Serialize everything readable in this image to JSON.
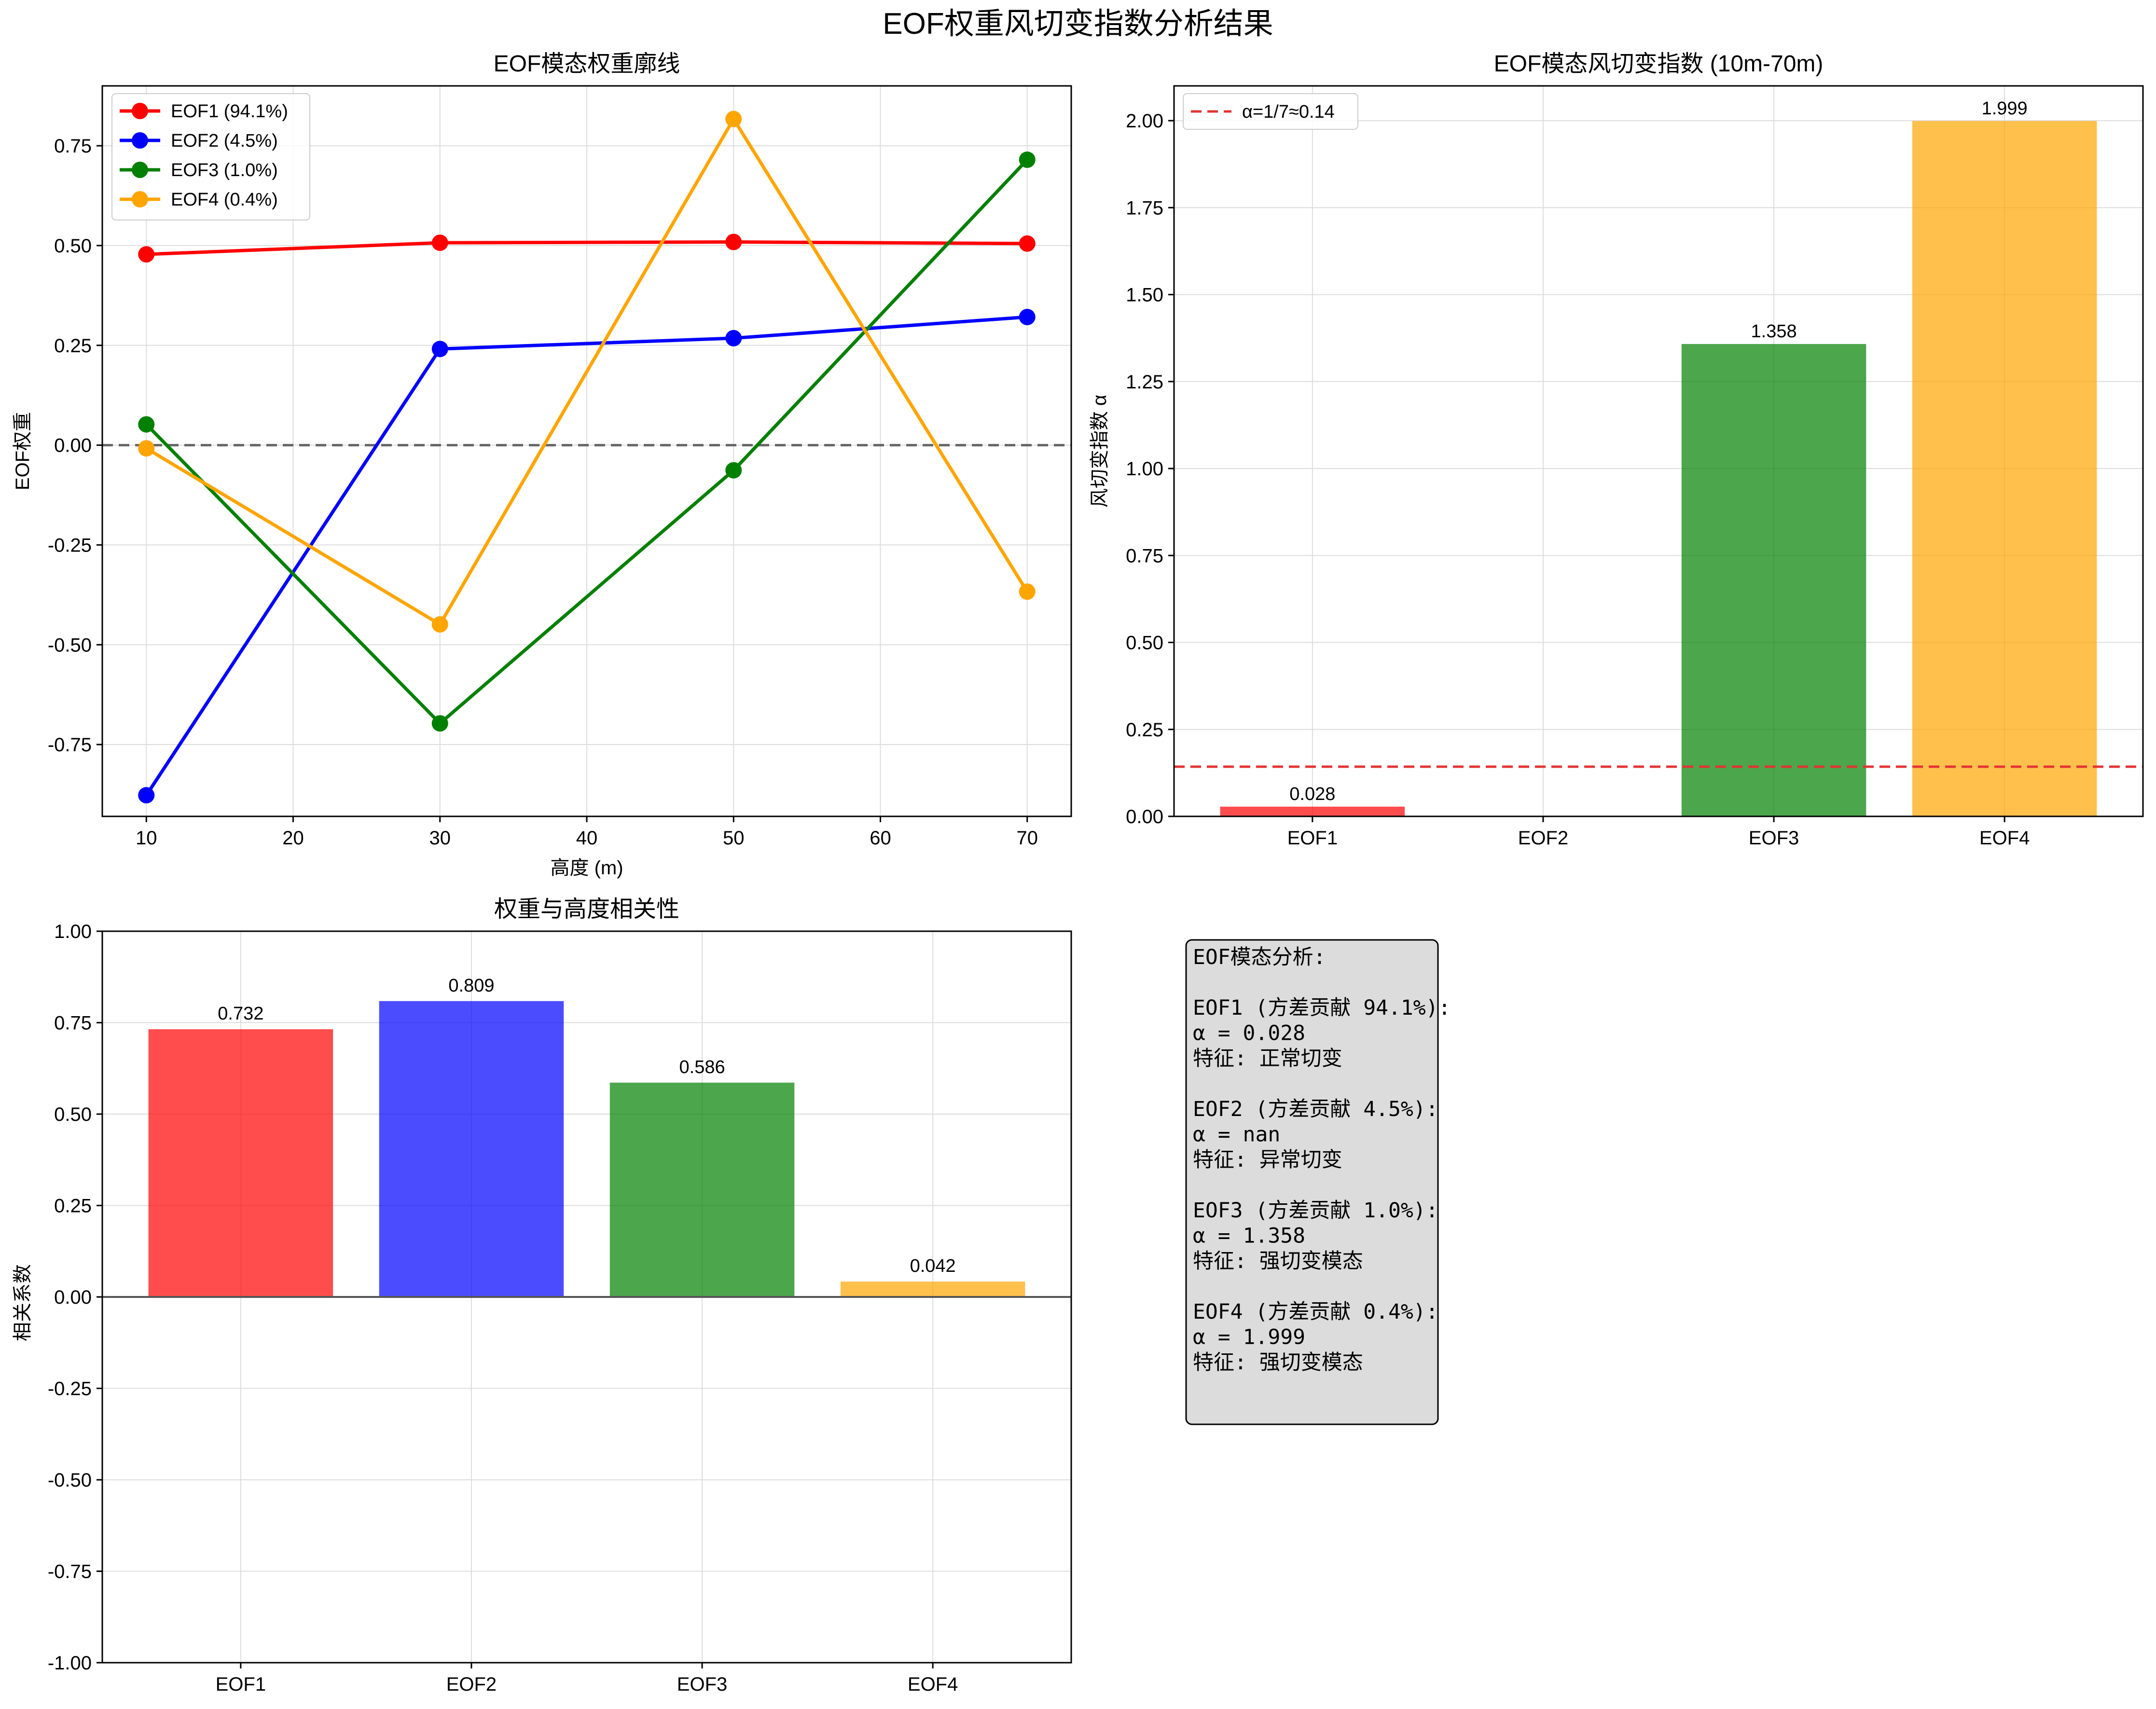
{
  "suptitle": "EOF权重风切变指数分析结果",
  "colors": {
    "EOF1": "#ff0000",
    "EOF2": "#0000ff",
    "EOF3": "#008000",
    "EOF4": "#ffa500",
    "ref_line": "#e33333",
    "zero_line": "#666666",
    "textbox_bg": "#dcdcdc"
  },
  "chart_data": [
    {
      "type": "line",
      "title": "EOF模态权重廓线",
      "xlabel": "高度 (m)",
      "ylabel": "EOF权重",
      "x": [
        10,
        30,
        50,
        70
      ],
      "xlim": [
        7,
        73
      ],
      "ylim": [
        -0.93,
        0.9
      ],
      "xticks": [
        10,
        20,
        30,
        40,
        50,
        60,
        70
      ],
      "yticks": [
        -0.75,
        -0.5,
        -0.25,
        0.0,
        0.25,
        0.5,
        0.75
      ],
      "ytick_labels": [
        "-0.75",
        "-0.50",
        "-0.25",
        "0.00",
        "0.25",
        "0.50",
        "0.75"
      ],
      "grid": true,
      "legend": "top-left",
      "zero_line": true,
      "series": [
        {
          "name": "EOF1 (94.1%)",
          "key": "EOF1",
          "values": [
            0.478,
            0.507,
            0.509,
            0.505
          ]
        },
        {
          "name": "EOF2 (4.5%)",
          "key": "EOF2",
          "values": [
            -0.877,
            0.241,
            0.268,
            0.321
          ]
        },
        {
          "name": "EOF3 (1.0%)",
          "key": "EOF3",
          "values": [
            0.052,
            -0.697,
            -0.063,
            0.715
          ]
        },
        {
          "name": "EOF4 (0.4%)",
          "key": "EOF4",
          "values": [
            -0.008,
            -0.449,
            0.817,
            -0.367
          ]
        }
      ]
    },
    {
      "type": "bar",
      "title": "EOF模态风切变指数 (10m-70m)",
      "xlabel": "",
      "ylabel": "风切变指数 α",
      "categories": [
        "EOF1",
        "EOF2",
        "EOF3",
        "EOF4"
      ],
      "values": [
        0.028,
        null,
        1.358,
        1.999
      ],
      "value_labels": [
        "0.028",
        "",
        "1.358",
        "1.999"
      ],
      "ylim": [
        0,
        2.1
      ],
      "yticks": [
        0,
        0.25,
        0.5,
        0.75,
        1.0,
        1.25,
        1.5,
        1.75,
        2.0
      ],
      "ytick_labels": [
        "0.00",
        "0.25",
        "0.50",
        "0.75",
        "1.00",
        "1.25",
        "1.50",
        "1.75",
        "2.00"
      ],
      "grid": true,
      "legend": "top-left",
      "reference_line": {
        "value": 0.1429,
        "label": "α=1/7≈0.14"
      }
    },
    {
      "type": "bar",
      "title": "权重与高度相关性",
      "xlabel": "",
      "ylabel": "相关系数",
      "categories": [
        "EOF1",
        "EOF2",
        "EOF3",
        "EOF4"
      ],
      "values": [
        0.732,
        0.809,
        0.586,
        0.042
      ],
      "value_labels": [
        "0.732",
        "0.809",
        "0.586",
        "0.042"
      ],
      "ylim": [
        -1.0,
        1.0
      ],
      "yticks": [
        -1.0,
        -0.75,
        -0.5,
        -0.25,
        0.0,
        0.25,
        0.5,
        0.75,
        1.0
      ],
      "ytick_labels": [
        "-1.00",
        "-0.75",
        "-0.50",
        "-0.25",
        "0.00",
        "0.25",
        "0.50",
        "0.75",
        "1.00"
      ],
      "grid": true,
      "zero_line": true
    }
  ],
  "textbox": {
    "lines": [
      "EOF模态分析:",
      "",
      "EOF1 (方差贡献 94.1%):",
      "  α = 0.028",
      "  特征: 正常切变",
      "",
      "EOF2 (方差贡献 4.5%):",
      "  α = nan",
      "  特征: 异常切变",
      "",
      "EOF3 (方差贡献 1.0%):",
      "  α = 1.358",
      "  特征: 强切变模态",
      "",
      "EOF4 (方差贡献 0.4%):",
      "  α = 1.999",
      "  特征: 强切变模态"
    ]
  }
}
